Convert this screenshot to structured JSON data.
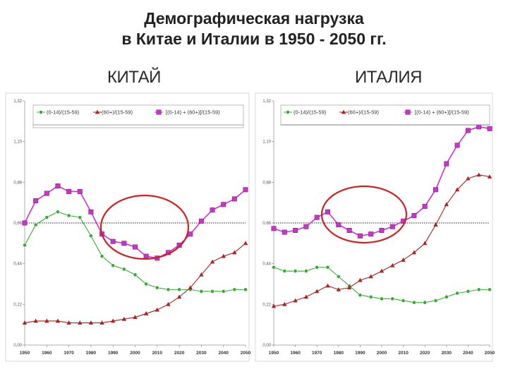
{
  "title": {
    "line1": "Демографическая нагрузка",
    "line2": "в Китае и Италии в 1950 - 2050 гг."
  },
  "colors": {
    "green": "#33aa33",
    "red": "#aa2222",
    "magenta": "#cc33cc",
    "circle": "#cc2222",
    "grid": "#cccccc"
  },
  "chart_data": [
    {
      "type": "line",
      "title": "КИТАЙ",
      "x": [
        1950,
        1955,
        1960,
        1965,
        1970,
        1975,
        1980,
        1985,
        1990,
        1995,
        2000,
        2005,
        2010,
        2015,
        2020,
        2025,
        2030,
        2035,
        2040,
        2045,
        2050
      ],
      "x_ticks": [
        "1950",
        "1960",
        "1970",
        "1980",
        "1990",
        "2000",
        "2010",
        "2020",
        "2030",
        "2040",
        "2050"
      ],
      "y_ticks": [
        "0,00",
        "0,22",
        "0,44",
        "0,66",
        "0,88",
        "1,10",
        "1,32"
      ],
      "ylim": [
        0,
        1.32
      ],
      "reference_line": 0.66,
      "series": [
        {
          "name": "(0-14)/(15-59)",
          "color": "green",
          "marker": "circle",
          "values": [
            0.54,
            0.65,
            0.69,
            0.72,
            0.7,
            0.69,
            0.59,
            0.48,
            0.43,
            0.41,
            0.38,
            0.33,
            0.31,
            0.3,
            0.3,
            0.3,
            0.29,
            0.29,
            0.29,
            0.3,
            0.3
          ]
        },
        {
          "name": "(60+)/(15-59)",
          "color": "red",
          "marker": "triangle",
          "values": [
            0.12,
            0.13,
            0.13,
            0.13,
            0.12,
            0.12,
            0.12,
            0.12,
            0.13,
            0.14,
            0.15,
            0.17,
            0.19,
            0.22,
            0.26,
            0.31,
            0.38,
            0.45,
            0.48,
            0.5,
            0.55
          ]
        },
        {
          "name": "[(0-14) + (60+)]/(15-59)",
          "color": "magenta",
          "marker": "square",
          "values": [
            0.66,
            0.78,
            0.82,
            0.86,
            0.83,
            0.83,
            0.72,
            0.6,
            0.56,
            0.55,
            0.53,
            0.48,
            0.47,
            0.5,
            0.54,
            0.6,
            0.67,
            0.73,
            0.76,
            0.79,
            0.84
          ]
        }
      ]
    },
    {
      "type": "line",
      "title": "ИТАЛИЯ",
      "x": [
        1950,
        1955,
        1960,
        1965,
        1970,
        1975,
        1980,
        1985,
        1990,
        1995,
        2000,
        2005,
        2010,
        2015,
        2020,
        2025,
        2030,
        2035,
        2040,
        2045,
        2050
      ],
      "x_ticks": [
        "1950",
        "1960",
        "1970",
        "1980",
        "1990",
        "2000",
        "2010",
        "2020",
        "2030",
        "2040",
        "2050"
      ],
      "y_ticks": [
        "0,00",
        "0,22",
        "0,44",
        "0,66",
        "0,88",
        "1,10",
        "1,32"
      ],
      "ylim": [
        0,
        1.32
      ],
      "reference_line": 0.66,
      "series": [
        {
          "name": "(0-14)/(15-59)",
          "color": "green",
          "marker": "circle",
          "values": [
            0.42,
            0.4,
            0.4,
            0.4,
            0.42,
            0.42,
            0.37,
            0.32,
            0.27,
            0.26,
            0.25,
            0.25,
            0.24,
            0.23,
            0.23,
            0.24,
            0.26,
            0.28,
            0.29,
            0.3,
            0.3
          ]
        },
        {
          "name": "(60+)/(15-59)",
          "color": "red",
          "marker": "triangle",
          "values": [
            0.21,
            0.22,
            0.24,
            0.26,
            0.29,
            0.32,
            0.3,
            0.31,
            0.35,
            0.37,
            0.4,
            0.43,
            0.46,
            0.5,
            0.55,
            0.65,
            0.76,
            0.84,
            0.9,
            0.92,
            0.91
          ]
        },
        {
          "name": "[(0-14) + (60+)]/(15-59)",
          "color": "magenta",
          "marker": "square",
          "values": [
            0.63,
            0.61,
            0.62,
            0.64,
            0.69,
            0.72,
            0.65,
            0.62,
            0.59,
            0.6,
            0.62,
            0.64,
            0.67,
            0.7,
            0.75,
            0.84,
            0.98,
            1.08,
            1.16,
            1.18,
            1.17
          ]
        }
      ]
    }
  ]
}
